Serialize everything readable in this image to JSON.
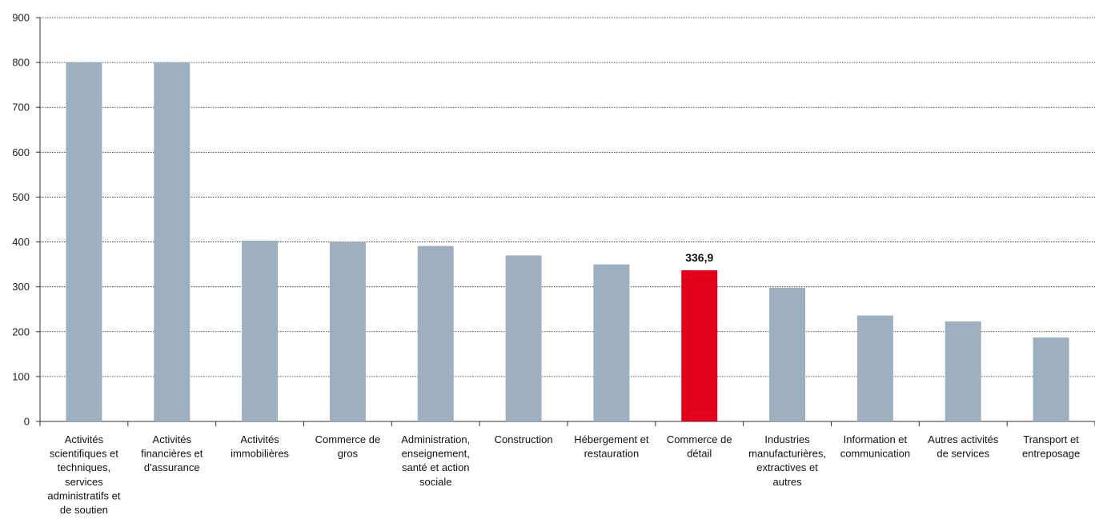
{
  "chart_data": {
    "type": "bar",
    "categories": [
      [
        "Activités",
        "scientifiques et",
        "techniques,",
        "services",
        "administratifs et",
        "de soutien"
      ],
      [
        "Activités",
        "financières et",
        "d'assurance"
      ],
      [
        "Activités",
        "immobilières"
      ],
      [
        "Commerce de",
        "gros"
      ],
      [
        "Administration,",
        "enseignement,",
        "santé et action",
        "sociale"
      ],
      [
        "Construction"
      ],
      [
        "Hébergement et",
        "restauration"
      ],
      [
        "Commerce de",
        "détail"
      ],
      [
        "Industries",
        "manufacturières,",
        "extractives et",
        "autres"
      ],
      [
        "Information et",
        "communication"
      ],
      [
        "Autres activités",
        "de services"
      ],
      [
        "Transport et",
        "entreposage"
      ]
    ],
    "values": [
      800,
      800,
      403,
      400,
      391,
      370,
      350,
      336.9,
      298,
      236,
      223,
      187
    ],
    "highlight_index": 7,
    "highlight_label": "336,9",
    "bar_color": "#9eb0bf",
    "highlight_color": "#e2001a",
    "ylim": [
      0,
      900
    ],
    "yticks": [
      "0",
      "100",
      "200",
      "300",
      "400",
      "500",
      "600",
      "700",
      "800",
      "900"
    ],
    "grid": true,
    "title": "",
    "xlabel": "",
    "ylabel": ""
  }
}
